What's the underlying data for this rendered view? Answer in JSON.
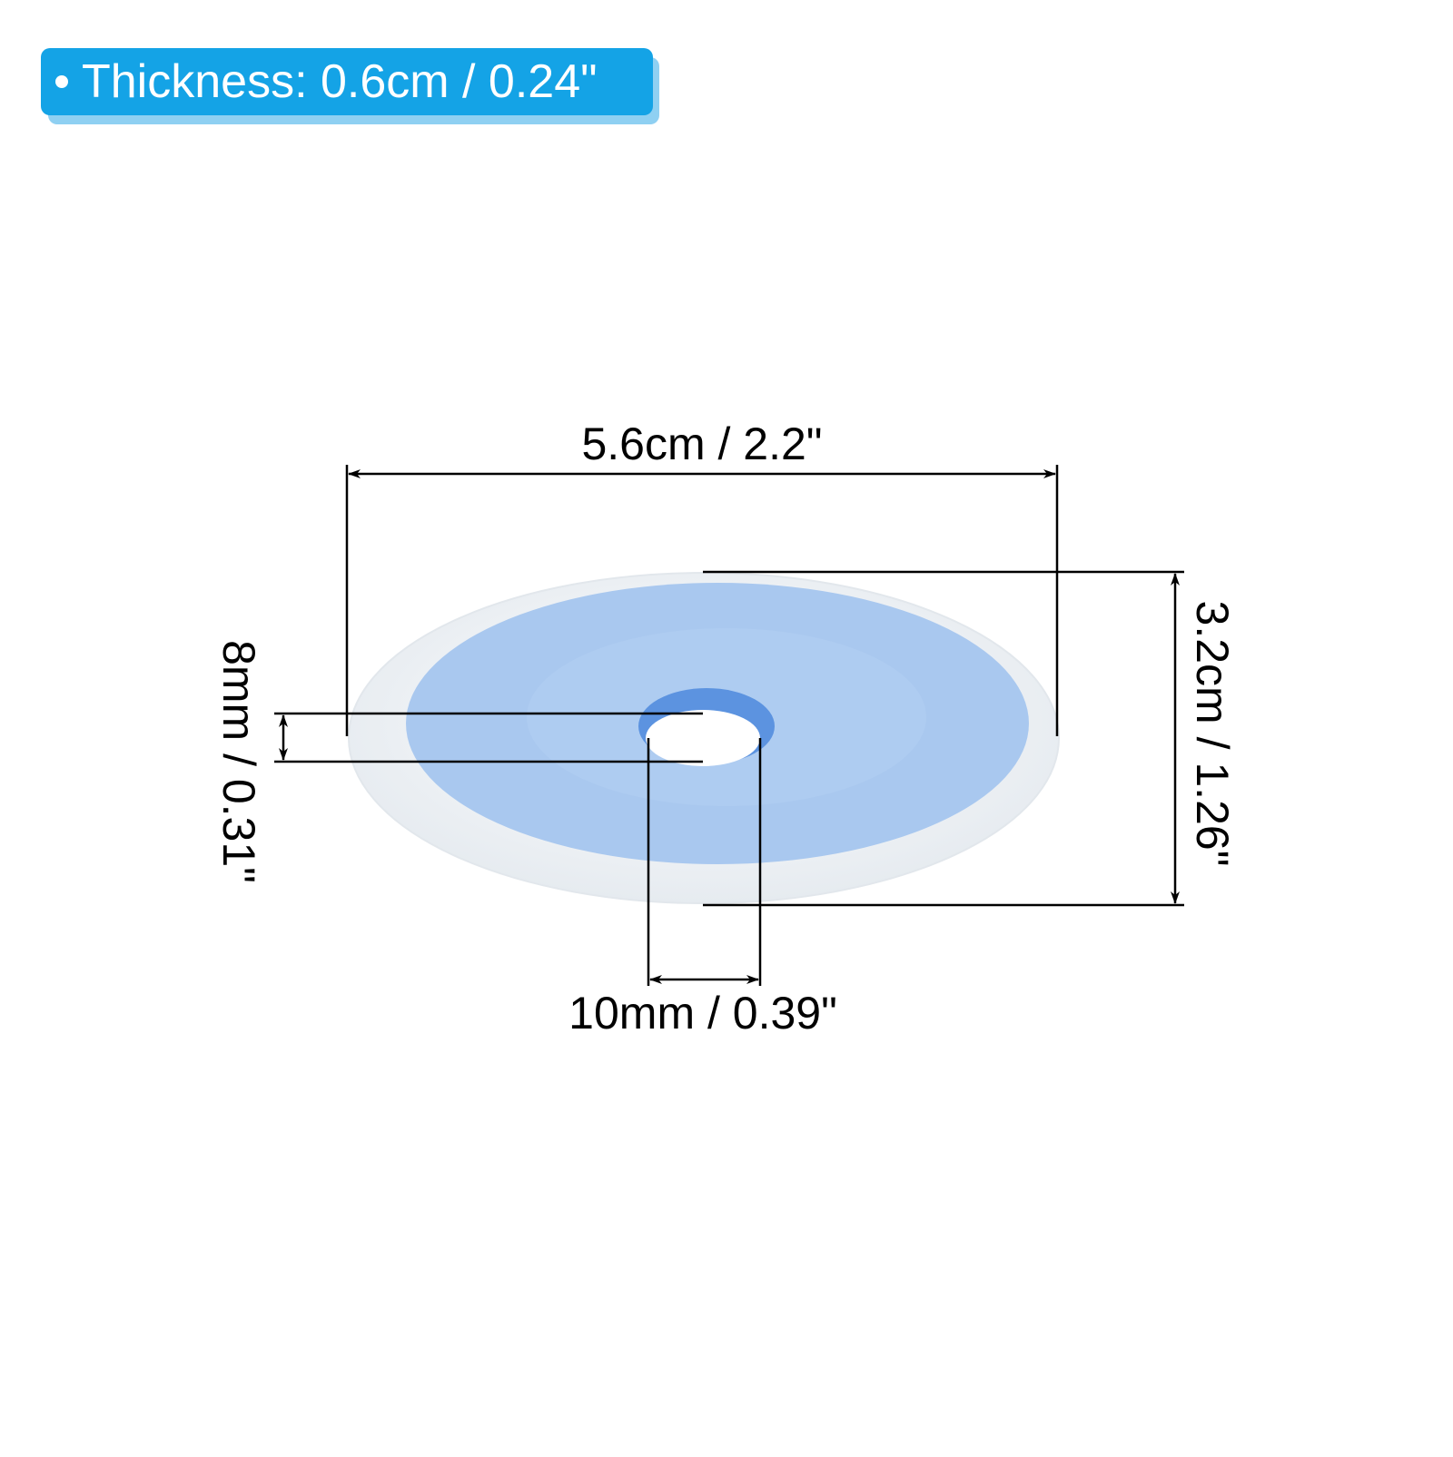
{
  "badge": {
    "text": "Thickness: 0.6cm / 0.24\""
  },
  "dimensions": {
    "outer_width": "5.6cm / 2.2\"",
    "outer_height": "3.2cm / 1.26\"",
    "hole_height": "8mm / 0.31\"",
    "hole_width": "10mm / 0.39\""
  }
}
